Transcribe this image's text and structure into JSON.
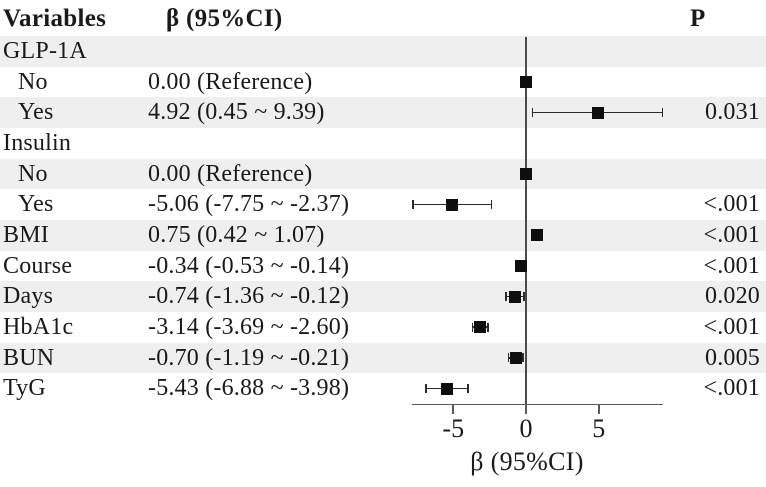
{
  "header": {
    "variables": "Variables",
    "beta_ci": "β (95%CI)",
    "p": "P"
  },
  "colors": {
    "band": "#efefef",
    "background": "#ffffff",
    "text": "#1a1a1a",
    "refline": "#4a4a4a",
    "axis": "#5a5a5a",
    "whisker": "#2b2b2b",
    "marker": "#0e0e0e"
  },
  "chart_data": {
    "type": "forest",
    "title": "",
    "xlabel": "β (95%CI)",
    "columns": [
      "Variables",
      "β (95%CI)",
      "P"
    ],
    "x_ticks": [
      -5,
      0,
      5
    ],
    "xlim": [
      -7.8,
      9.5
    ],
    "reference_line": 0,
    "grid": false,
    "rows": [
      {
        "label": "GLP-1A",
        "indent": 0,
        "ci_text": "",
        "p": ""
      },
      {
        "label": "No",
        "indent": 1,
        "ci_text": "0.00 (Reference)",
        "p": "",
        "est": 0,
        "lo": 0,
        "hi": 0
      },
      {
        "label": "Yes",
        "indent": 1,
        "ci_text": "4.92 (0.45 ~ 9.39)",
        "p": "0.031",
        "est": 4.92,
        "lo": 0.45,
        "hi": 9.39
      },
      {
        "label": "Insulin",
        "indent": 0,
        "ci_text": "",
        "p": ""
      },
      {
        "label": "No",
        "indent": 1,
        "ci_text": "0.00 (Reference)",
        "p": "",
        "est": 0,
        "lo": 0,
        "hi": 0
      },
      {
        "label": "Yes",
        "indent": 1,
        "ci_text": "-5.06 (-7.75 ~ -2.37)",
        "p": "<.001",
        "est": -5.06,
        "lo": -7.75,
        "hi": -2.37
      },
      {
        "label": "BMI",
        "indent": 0,
        "ci_text": "0.75 (0.42 ~ 1.07)",
        "p": "<.001",
        "est": 0.75,
        "lo": 0.42,
        "hi": 1.07
      },
      {
        "label": "Course",
        "indent": 0,
        "ci_text": "-0.34 (-0.53 ~ -0.14)",
        "p": "<.001",
        "est": -0.34,
        "lo": -0.53,
        "hi": -0.14
      },
      {
        "label": "Days",
        "indent": 0,
        "ci_text": "-0.74 (-1.36 ~ -0.12)",
        "p": "0.020",
        "est": -0.74,
        "lo": -1.36,
        "hi": -0.12
      },
      {
        "label": "HbA1c",
        "indent": 0,
        "ci_text": "-3.14 (-3.69 ~ -2.60)",
        "p": "<.001",
        "est": -3.14,
        "lo": -3.69,
        "hi": -2.6
      },
      {
        "label": "BUN",
        "indent": 0,
        "ci_text": "-0.70 (-1.19 ~ -0.21)",
        "p": "0.005",
        "est": -0.7,
        "lo": -1.19,
        "hi": -0.21
      },
      {
        "label": "TyG",
        "indent": 0,
        "ci_text": "-5.43 (-6.88 ~ -3.98)",
        "p": "<.001",
        "est": -5.43,
        "lo": -6.88,
        "hi": -3.98
      }
    ]
  }
}
